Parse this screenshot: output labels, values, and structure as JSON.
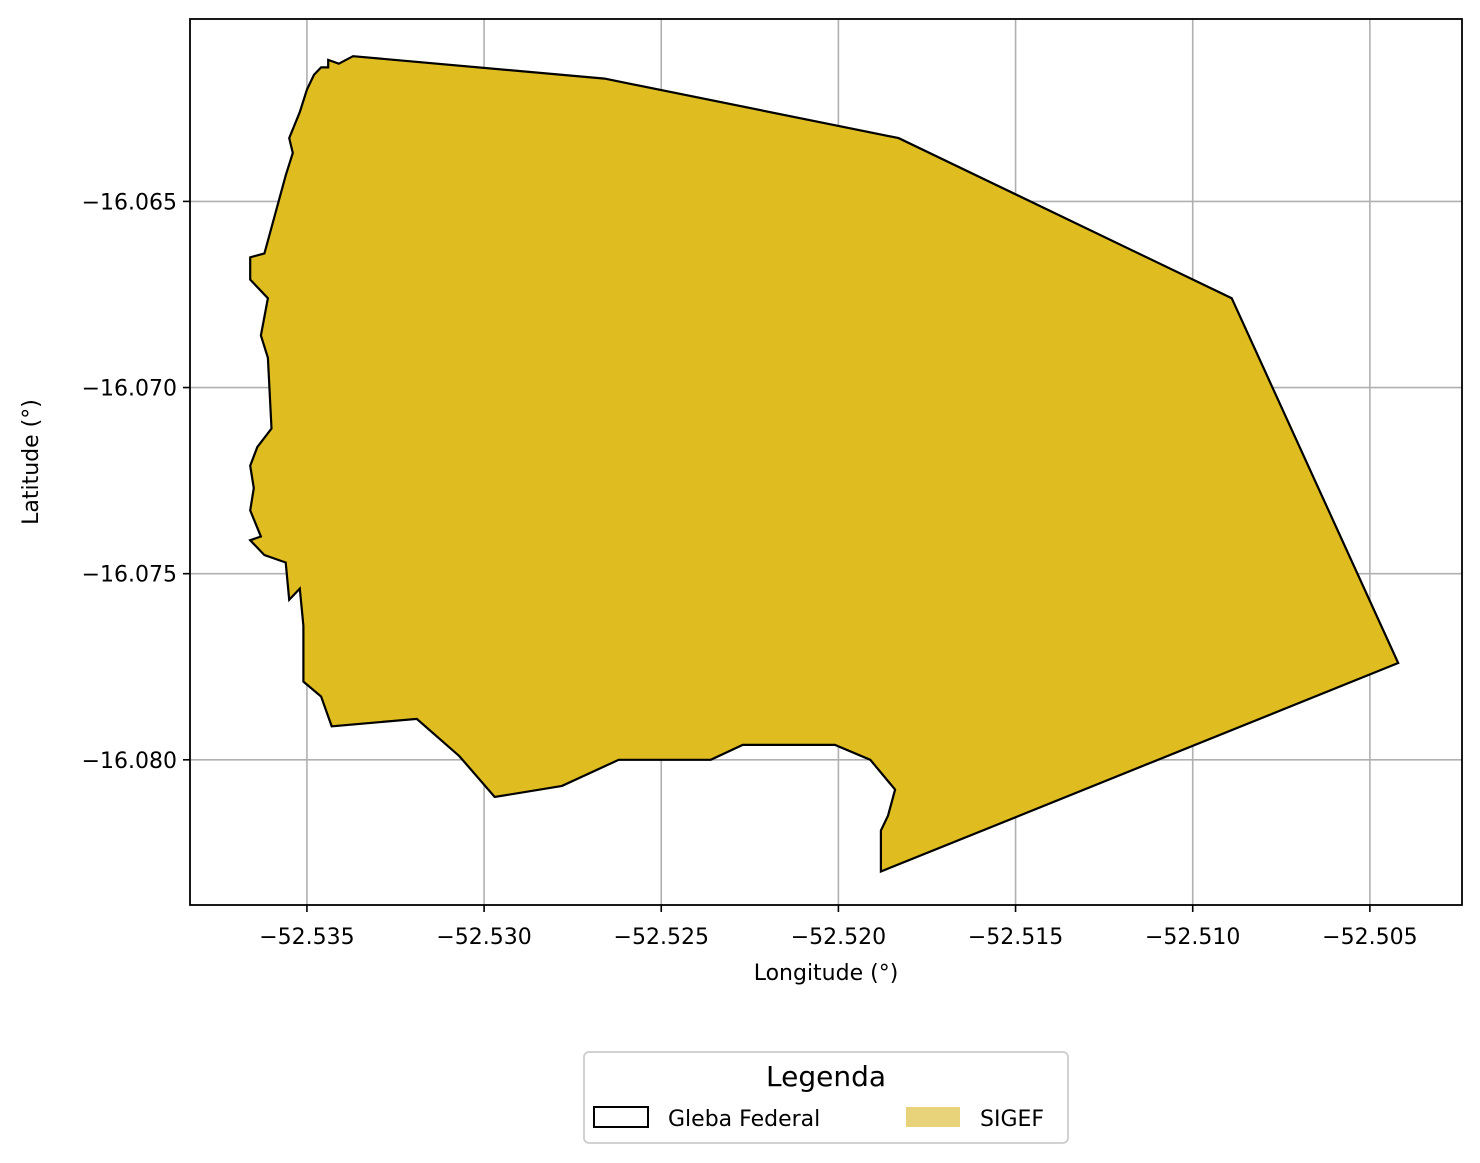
{
  "map": {
    "xlabel": "Longitude (°)",
    "ylabel": "Latitude (°)",
    "xlim": [
      -52.5383,
      -52.5024
    ],
    "ylim": [
      -16.0839,
      -16.0601
    ],
    "grid": true,
    "xticks": [
      -52.535,
      -52.53,
      -52.525,
      -52.52,
      -52.515,
      -52.51,
      -52.505
    ],
    "yticks": [
      -16.065,
      -16.07,
      -16.075,
      -16.08
    ],
    "xtick_labels": [
      "−52.535",
      "−52.530",
      "−52.525",
      "−52.520",
      "−52.515",
      "−52.510",
      "−52.505"
    ],
    "ytick_labels": [
      "−16.065",
      "−16.070",
      "−16.075",
      "−16.080"
    ],
    "colors": {
      "sigef_fill": "#dfbd21",
      "gleba_edge": "#000000",
      "grid": "#b0b0b0"
    }
  },
  "chart_data": {
    "type": "map",
    "layers": [
      {
        "name": "Gleba Federal",
        "style": "outline",
        "color": "#000000"
      },
      {
        "name": "SIGEF",
        "style": "fill",
        "color": "#dfbd21"
      }
    ],
    "polygon": [
      [
        -52.5337,
        -16.0611
      ],
      [
        -52.5266,
        -16.0617
      ],
      [
        -52.5183,
        -16.0633
      ],
      [
        -52.5089,
        -16.0676
      ],
      [
        -52.5042,
        -16.0774
      ],
      [
        -52.5188,
        -16.083
      ],
      [
        -52.5188,
        -16.0819
      ],
      [
        -52.5186,
        -16.0815
      ],
      [
        -52.5184,
        -16.0808
      ],
      [
        -52.5191,
        -16.08
      ],
      [
        -52.5201,
        -16.0796
      ],
      [
        -52.5214,
        -16.0796
      ],
      [
        -52.5227,
        -16.0796
      ],
      [
        -52.5236,
        -16.08
      ],
      [
        -52.5262,
        -16.08
      ],
      [
        -52.5278,
        -16.0807
      ],
      [
        -52.5297,
        -16.081
      ],
      [
        -52.5307,
        -16.0799
      ],
      [
        -52.5319,
        -16.0789
      ],
      [
        -52.5343,
        -16.0791
      ],
      [
        -52.5346,
        -16.0783
      ],
      [
        -52.5351,
        -16.0779
      ],
      [
        -52.5351,
        -16.0764
      ],
      [
        -52.5352,
        -16.0754
      ],
      [
        -52.5355,
        -16.0757
      ],
      [
        -52.5356,
        -16.0747
      ],
      [
        -52.5362,
        -16.0745
      ],
      [
        -52.5366,
        -16.0741
      ],
      [
        -52.5363,
        -16.074
      ],
      [
        -52.5366,
        -16.0733
      ],
      [
        -52.5365,
        -16.0727
      ],
      [
        -52.5366,
        -16.0721
      ],
      [
        -52.5364,
        -16.0716
      ],
      [
        -52.536,
        -16.0711
      ],
      [
        -52.5361,
        -16.0692
      ],
      [
        -52.5363,
        -16.0686
      ],
      [
        -52.5361,
        -16.0676
      ],
      [
        -52.5366,
        -16.0671
      ],
      [
        -52.5366,
        -16.0665
      ],
      [
        -52.5362,
        -16.0664
      ],
      [
        -52.5356,
        -16.0643
      ],
      [
        -52.5354,
        -16.0637
      ],
      [
        -52.5355,
        -16.0633
      ],
      [
        -52.5352,
        -16.0626
      ],
      [
        -52.535,
        -16.062
      ],
      [
        -52.5348,
        -16.0616
      ],
      [
        -52.5346,
        -16.0614
      ],
      [
        -52.5344,
        -16.0614
      ],
      [
        -52.5344,
        -16.0612
      ],
      [
        -52.5341,
        -16.0613
      ]
    ],
    "legend": {
      "title": "Legenda",
      "entries": [
        "Gleba Federal",
        "SIGEF"
      ],
      "placement": "bottom-center"
    }
  }
}
